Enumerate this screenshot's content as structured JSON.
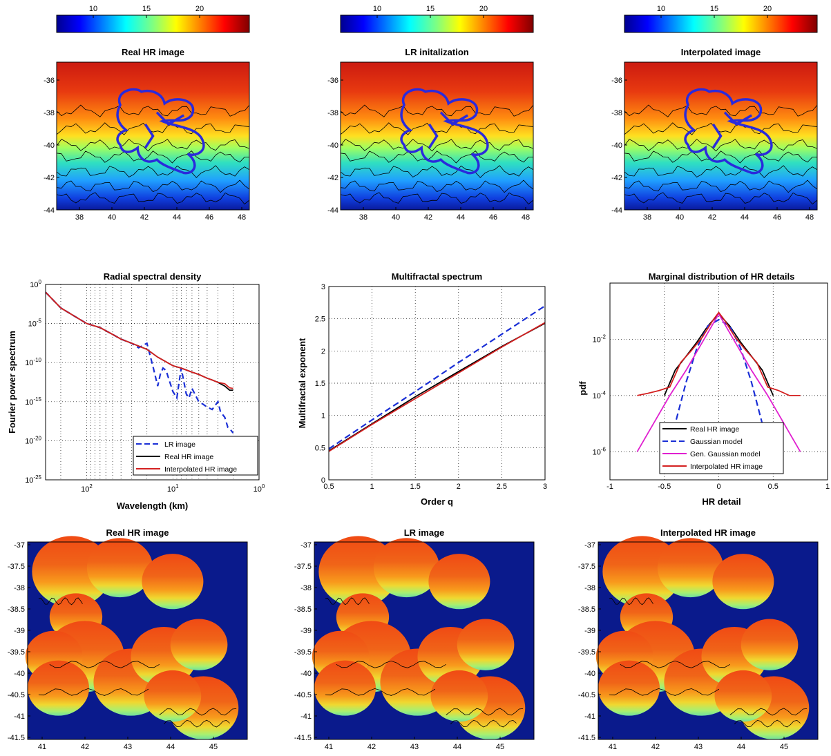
{
  "colors": {
    "colormap": "jet",
    "ocean": "#0a1a8c",
    "contour": "#000000",
    "region_outline": "#2a2adc",
    "lr_dashed": "#1a2fd6",
    "real_hr": "#000000",
    "interpolated": "#d42020",
    "gen_gaussian": "#e020d0"
  },
  "colorbars": [
    {
      "ticks": [
        "10",
        "15",
        "20"
      ]
    },
    {
      "ticks": [
        "10",
        "15",
        "20"
      ]
    },
    {
      "ticks": [
        "10",
        "15",
        "20"
      ]
    }
  ],
  "maps_top": [
    {
      "title": "Real HR image",
      "yticks": [
        "-36",
        "-38",
        "-40",
        "-42",
        "-44"
      ],
      "xticks": [
        "38",
        "40",
        "42",
        "44",
        "46",
        "48"
      ]
    },
    {
      "title": "LR initalization",
      "yticks": [
        "-36",
        "-38",
        "-40",
        "-42",
        "-44"
      ],
      "xticks": [
        "38",
        "40",
        "42",
        "44",
        "46",
        "48"
      ]
    },
    {
      "title": "Interpolated image",
      "yticks": [
        "-36",
        "-38",
        "-40",
        "-42",
        "-44"
      ],
      "xticks": [
        "38",
        "40",
        "42",
        "44",
        "46",
        "48"
      ]
    }
  ],
  "maps_bottom": [
    {
      "title": "Real HR image",
      "yticks": [
        "-37",
        "-37.5",
        "-38",
        "-38.5",
        "-39",
        "-39.5",
        "-40",
        "-40.5",
        "-41",
        "-41.5"
      ],
      "xticks": [
        "41",
        "42",
        "43",
        "44",
        "45"
      ]
    },
    {
      "title": "LR image",
      "yticks": [
        "-37",
        "-37.5",
        "-38",
        "-38.5",
        "-39",
        "-39.5",
        "-40",
        "-40.5",
        "-41",
        "-41.5"
      ],
      "xticks": [
        "41",
        "42",
        "43",
        "44",
        "45"
      ]
    },
    {
      "title": "Interpolated HR image",
      "yticks": [
        "-37",
        "-37.5",
        "-38",
        "-38.5",
        "-39",
        "-39.5",
        "-40",
        "-40.5",
        "-41",
        "-41.5"
      ],
      "xticks": [
        "41",
        "42",
        "43",
        "44",
        "45"
      ]
    }
  ],
  "chart_data": [
    {
      "type": "line",
      "title": "Radial spectral density",
      "xlabel": "Wavelength (km)",
      "ylabel": "Fourier power spectrum",
      "xscale": "log",
      "yscale": "log",
      "xaxis_reversed": true,
      "xlim": [
        300,
        1
      ],
      "ylim": [
        1e-25,
        1
      ],
      "xtick_labels": [
        "10^2",
        "10^1",
        "10^0"
      ],
      "ytick_labels": [
        "10^0",
        "10^-5",
        "10^-10",
        "10^-15",
        "10^-20",
        "10^-25"
      ],
      "grid": true,
      "legend_position": "bottom-right",
      "series": [
        {
          "name": "LR image",
          "style": "dashed",
          "x": [
            300,
            200,
            100,
            70,
            50,
            40,
            30,
            25,
            20,
            17,
            15,
            14,
            13,
            12,
            11,
            10,
            9,
            8,
            7,
            6.5,
            6,
            5,
            4.5,
            4,
            3.5,
            3,
            2.8,
            2.5,
            2.3,
            2.1,
            2
          ],
          "y": [
            0.1,
            0.001,
            1e-05,
            3e-06,
            4e-07,
            1e-07,
            3e-08,
            8e-09,
            3e-08,
            3e-11,
            1e-13,
            3e-12,
            2e-11,
            1e-11,
            5e-13,
            2e-14,
            3e-15,
            2e-11,
            1e-14,
            3e-15,
            5e-14,
            1e-15,
            5e-16,
            2e-16,
            1e-16,
            1e-15,
            5e-17,
            1e-17,
            5e-19,
            2e-19,
            1e-19
          ]
        },
        {
          "name": "Real HR image",
          "style": "solid",
          "x": [
            300,
            200,
            100,
            70,
            50,
            40,
            30,
            20,
            15,
            10,
            8,
            6,
            5,
            4,
            3.5,
            3,
            2.5,
            2.2,
            2
          ],
          "y": [
            0.1,
            0.001,
            1e-05,
            3e-06,
            4e-07,
            1e-07,
            3e-08,
            5e-09,
            5e-10,
            4e-11,
            2e-11,
            6e-12,
            3e-12,
            1e-12,
            6e-13,
            3e-13,
            1e-13,
            3e-14,
            3e-14
          ]
        },
        {
          "name": "Interpolated HR image",
          "style": "solid",
          "x": [
            300,
            200,
            100,
            70,
            50,
            40,
            30,
            20,
            15,
            10,
            8,
            6,
            5,
            4,
            3.5,
            3,
            2.5,
            2.2,
            2
          ],
          "y": [
            0.1,
            0.001,
            1e-05,
            3e-06,
            4e-07,
            1e-07,
            3e-08,
            5e-09,
            5e-10,
            4e-11,
            2e-11,
            6e-12,
            3e-12,
            1e-12,
            6e-13,
            3e-13,
            2e-13,
            6e-14,
            5e-14
          ]
        }
      ]
    },
    {
      "type": "line",
      "title": "Multifractal spectrum",
      "xlabel": "Order q",
      "ylabel": "Multifractal exponent",
      "xlim": [
        0.5,
        3
      ],
      "ylim": [
        0,
        3
      ],
      "xtick_labels": [
        "0.5",
        "1",
        "1.5",
        "2",
        "2.5",
        "3"
      ],
      "ytick_labels": [
        "0",
        "0.5",
        "1",
        "1.5",
        "2",
        "2.5",
        "3"
      ],
      "grid": true,
      "series": [
        {
          "name": "LR image",
          "style": "dashed",
          "x": [
            0.5,
            1,
            1.5,
            2,
            2.5,
            3
          ],
          "y": [
            0.48,
            0.93,
            1.37,
            1.82,
            2.26,
            2.7
          ]
        },
        {
          "name": "Real HR image",
          "style": "solid",
          "x": [
            0.5,
            1,
            1.5,
            2,
            2.5,
            3
          ],
          "y": [
            0.45,
            0.87,
            1.29,
            1.68,
            2.07,
            2.43
          ]
        },
        {
          "name": "Interpolated HR image",
          "style": "solid",
          "x": [
            0.5,
            1,
            1.5,
            2,
            2.5,
            3
          ],
          "y": [
            0.44,
            0.86,
            1.26,
            1.66,
            2.06,
            2.44
          ]
        }
      ]
    },
    {
      "type": "line",
      "title": "Marginal distribution of HR details",
      "xlabel": "HR detail",
      "ylabel": "pdf",
      "yscale": "log",
      "xlim": [
        -1,
        1
      ],
      "ylim": [
        1e-07,
        1
      ],
      "xtick_labels": [
        "-1",
        "-0.5",
        "0",
        "0.5",
        "1"
      ],
      "ytick_labels": [
        "10^-2",
        "10^-4",
        "10^-6"
      ],
      "grid": true,
      "legend_position": "bottom",
      "series": [
        {
          "name": "Real HR image",
          "style": "solid",
          "x": [
            -0.5,
            -0.4,
            -0.3,
            -0.2,
            -0.1,
            0,
            0.1,
            0.2,
            0.3,
            0.4,
            0.5
          ],
          "y": [
            0.0001,
            0.0008,
            0.0025,
            0.008,
            0.03,
            0.08,
            0.03,
            0.008,
            0.0025,
            0.0008,
            0.0001
          ]
        },
        {
          "name": "Gaussian model",
          "style": "dashed",
          "x": [
            -0.5,
            -0.4,
            -0.3,
            -0.2,
            -0.1,
            0,
            0.1,
            0.2,
            0.3,
            0.4,
            0.5
          ],
          "y": [
            3e-07,
            1e-05,
            0.0003,
            0.005,
            0.03,
            0.05,
            0.03,
            0.005,
            0.0003,
            1e-05,
            3e-07
          ]
        },
        {
          "name": "Gen. Gaussian model",
          "style": "solid",
          "x": [
            -0.75,
            -0.6,
            -0.45,
            -0.3,
            -0.15,
            0,
            0.15,
            0.3,
            0.45,
            0.6,
            0.75
          ],
          "y": [
            1e-06,
            1e-05,
            0.0001,
            0.0008,
            0.008,
            0.08,
            0.008,
            0.0008,
            0.0001,
            1e-05,
            1e-06
          ]
        },
        {
          "name": "Interpolated HR image",
          "style": "solid",
          "x": [
            -0.75,
            -0.65,
            -0.55,
            -0.45,
            -0.35,
            -0.25,
            -0.15,
            -0.05,
            0,
            0.05,
            0.15,
            0.25,
            0.35,
            0.45,
            0.55,
            0.65,
            0.75
          ],
          "y": [
            0.0001,
            0.00012,
            0.00015,
            0.0002,
            0.0015,
            0.004,
            0.012,
            0.05,
            0.09,
            0.05,
            0.012,
            0.004,
            0.0015,
            0.0002,
            0.00015,
            0.0001,
            0.0001
          ]
        }
      ]
    }
  ]
}
